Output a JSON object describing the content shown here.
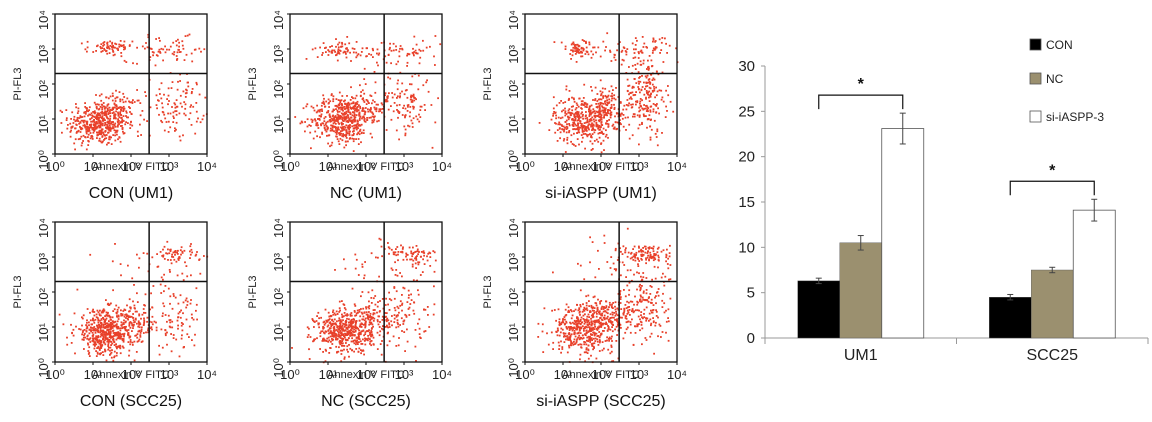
{
  "flow_panels": [
    {
      "caption": "CON (UM1)",
      "xlabel": "Annexin V FITC",
      "ylabel": "PI-FL3",
      "xticks": [
        "10⁰",
        "10¹",
        "10²",
        "10³",
        "10⁴"
      ],
      "yticks": [
        "10⁰",
        "10¹",
        "10²",
        "10³",
        "10⁴"
      ]
    },
    {
      "caption": "NC (UM1)",
      "xlabel": "Annexin V FITC",
      "ylabel": "PI-FL3",
      "xticks": [
        "10⁰",
        "10¹",
        "10²",
        "10³",
        "10⁴"
      ],
      "yticks": [
        "10⁰",
        "10¹",
        "10²",
        "10³",
        "10⁴"
      ]
    },
    {
      "caption": "si-iASPP (UM1)",
      "xlabel": "Annexin V FITC",
      "ylabel": "PI-FL3",
      "xticks": [
        "10⁰",
        "10¹",
        "10²",
        "10³",
        "10⁴"
      ],
      "yticks": [
        "10⁰",
        "10¹",
        "10²",
        "10³",
        "10⁴"
      ]
    },
    {
      "caption": "CON (SCC25)",
      "xlabel": "Annexin V FITC",
      "ylabel": "PI-FL3",
      "xticks": [
        "10⁰",
        "10¹",
        "10²",
        "10³",
        "10⁴"
      ],
      "yticks": [
        "10⁰",
        "10¹",
        "10²",
        "10³",
        "10⁴"
      ]
    },
    {
      "caption": "NC (SCC25)",
      "xlabel": "Annexin V FITC",
      "ylabel": "PI-FL3",
      "xticks": [
        "10⁰",
        "10¹",
        "10²",
        "10³",
        "10⁴"
      ],
      "yticks": [
        "10⁰",
        "10¹",
        "10²",
        "10³",
        "10⁴"
      ]
    },
    {
      "caption": "si-iASPP (SCC25)",
      "xlabel": "Annexin V FITC",
      "ylabel": "PI-FL3",
      "xticks": [
        "10⁰",
        "10¹",
        "10²",
        "10³",
        "10⁴"
      ],
      "yticks": [
        "10⁰",
        "10¹",
        "10²",
        "10³",
        "10⁴"
      ]
    }
  ],
  "chart_data": [
    {
      "type": "scatter",
      "panels": [
        "CON (UM1)",
        "NC (UM1)",
        "si-iASPP (UM1)",
        "CON (SCC25)",
        "NC (SCC25)",
        "si-iASPP (SCC25)"
      ],
      "xlabel": "Annexin V FITC",
      "ylabel": "PI-FL3",
      "xscale": "log",
      "yscale": "log",
      "xlim": [
        1,
        10000
      ],
      "ylim": [
        1,
        10000
      ],
      "x_gate": 300,
      "y_gate": 200,
      "color": "#e8402a"
    },
    {
      "type": "bar",
      "categories": [
        "UM1",
        "SCC25"
      ],
      "series": [
        {
          "name": "CON",
          "values": [
            6.3,
            4.5
          ],
          "errors": [
            0.3,
            0.3
          ],
          "color": "#000000"
        },
        {
          "name": "NC",
          "values": [
            10.5,
            7.5
          ],
          "errors": [
            0.8,
            0.3
          ],
          "color": "#9b906f"
        },
        {
          "name": "si-iASPP-3",
          "values": [
            23.1,
            14.1
          ],
          "errors": [
            1.7,
            1.2
          ],
          "color": "#ffffff"
        }
      ],
      "ylim": [
        0,
        30
      ],
      "yticks": [
        0,
        5,
        10,
        15,
        20,
        25,
        30
      ],
      "grid": false,
      "legend": "top-right",
      "annotations": [
        "*",
        "*"
      ]
    }
  ]
}
